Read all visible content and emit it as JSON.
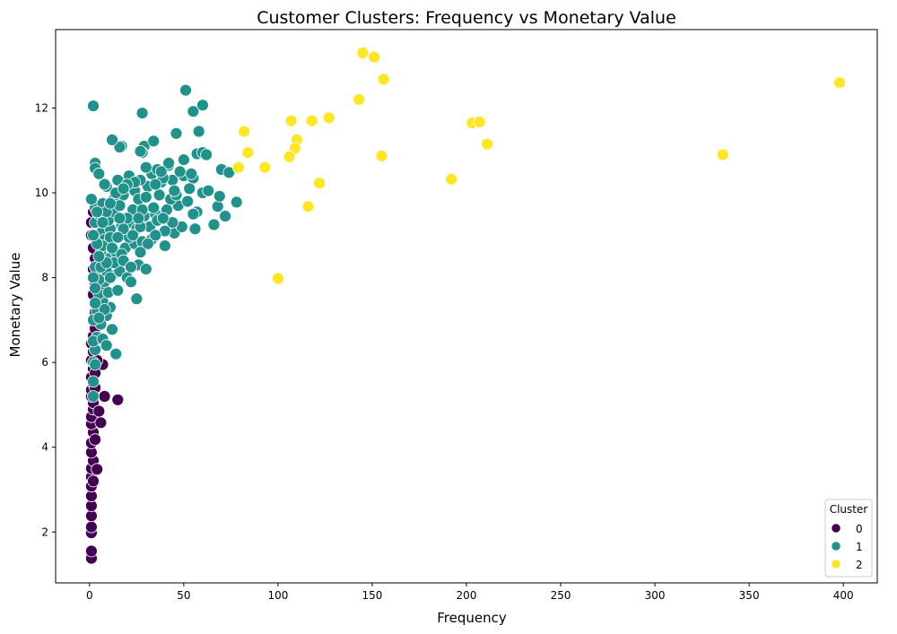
{
  "chart_data": {
    "type": "scatter",
    "title": "Customer Clusters: Frequency vs Monetary Value",
    "xlabel": "Frequency",
    "ylabel": "Monetary Value",
    "xlim": [
      -18,
      418
    ],
    "ylim": [
      0.8,
      13.85
    ],
    "xticks": [
      0,
      50,
      100,
      150,
      200,
      250,
      300,
      350,
      400
    ],
    "yticks": [
      2,
      4,
      6,
      8,
      10,
      12
    ],
    "grid": false,
    "legend": {
      "title": "Cluster",
      "placement": "bottom-right"
    },
    "series": [
      {
        "name": "0",
        "color": "#440154",
        "points": [
          [
            1,
            1.38
          ],
          [
            1,
            1.55
          ],
          [
            1,
            1.98
          ],
          [
            1,
            2.12
          ],
          [
            1,
            2.38
          ],
          [
            1,
            2.62
          ],
          [
            1,
            2.85
          ],
          [
            1,
            3.08
          ],
          [
            1,
            3.3
          ],
          [
            1,
            3.5
          ],
          [
            2,
            3.68
          ],
          [
            1,
            3.88
          ],
          [
            1,
            4.1
          ],
          [
            2,
            4.35
          ],
          [
            1,
            4.55
          ],
          [
            1,
            4.72
          ],
          [
            2,
            4.9
          ],
          [
            2,
            5.05
          ],
          [
            1,
            5.2
          ],
          [
            1,
            5.35
          ],
          [
            2,
            5.5
          ],
          [
            1,
            5.65
          ],
          [
            2,
            5.85
          ],
          [
            1,
            6.05
          ],
          [
            2,
            6.25
          ],
          [
            1,
            6.45
          ],
          [
            2,
            6.62
          ],
          [
            3,
            6.8
          ],
          [
            2,
            7.0
          ],
          [
            3,
            7.18
          ],
          [
            4,
            7.35
          ],
          [
            5,
            7.55
          ],
          [
            6,
            7.7
          ],
          [
            3,
            7.85
          ],
          [
            4,
            8.05
          ],
          [
            2,
            8.2
          ],
          [
            3,
            8.45
          ],
          [
            2,
            8.7
          ],
          [
            1,
            9.0
          ],
          [
            1,
            9.3
          ],
          [
            2,
            9.55
          ],
          [
            4,
            9.35
          ],
          [
            4,
            3.48
          ],
          [
            6,
            4.58
          ],
          [
            8,
            5.2
          ],
          [
            15,
            5.12
          ],
          [
            3,
            4.18
          ],
          [
            5,
            4.85
          ],
          [
            7,
            5.95
          ],
          [
            2,
            3.2
          ],
          [
            3,
            5.75
          ],
          [
            4,
            6.05
          ],
          [
            2,
            7.6
          ],
          [
            3,
            5.4
          ]
        ]
      },
      {
        "name": "1",
        "color": "#21918c",
        "points": [
          [
            2,
            12.05
          ],
          [
            3,
            10.7
          ],
          [
            3,
            10.58
          ],
          [
            5,
            10.45
          ],
          [
            2,
            5.2
          ],
          [
            2,
            6.0
          ],
          [
            3,
            6.3
          ],
          [
            4,
            6.6
          ],
          [
            14,
            6.2
          ],
          [
            12,
            6.78
          ],
          [
            9,
            7.1
          ],
          [
            11,
            7.3
          ],
          [
            7,
            7.45
          ],
          [
            5,
            7.62
          ],
          [
            25,
            7.5
          ],
          [
            8,
            7.9
          ],
          [
            12,
            8.05
          ],
          [
            16,
            8.15
          ],
          [
            20,
            8.0
          ],
          [
            22,
            7.9
          ],
          [
            26,
            8.3
          ],
          [
            30,
            8.2
          ],
          [
            6,
            8.35
          ],
          [
            10,
            8.45
          ],
          [
            14,
            8.6
          ],
          [
            19,
            8.7
          ],
          [
            24,
            8.8
          ],
          [
            28,
            8.85
          ],
          [
            33,
            8.9
          ],
          [
            40,
            8.75
          ],
          [
            45,
            9.05
          ],
          [
            49,
            9.2
          ],
          [
            56,
            9.15
          ],
          [
            66,
            9.25
          ],
          [
            72,
            9.45
          ],
          [
            78,
            9.78
          ],
          [
            68,
            9.68
          ],
          [
            6,
            9.05
          ],
          [
            11,
            9.15
          ],
          [
            17,
            9.25
          ],
          [
            22,
            9.3
          ],
          [
            29,
            9.45
          ],
          [
            35,
            9.5
          ],
          [
            41,
            9.6
          ],
          [
            47,
            9.7
          ],
          [
            52,
            9.8
          ],
          [
            57,
            9.55
          ],
          [
            60,
            10.0
          ],
          [
            63,
            10.05
          ],
          [
            3,
            9.65
          ],
          [
            7,
            9.75
          ],
          [
            13,
            9.85
          ],
          [
            18,
            9.95
          ],
          [
            24,
            10.05
          ],
          [
            31,
            10.15
          ],
          [
            38,
            10.25
          ],
          [
            44,
            10.3
          ],
          [
            50,
            10.4
          ],
          [
            55,
            10.35
          ],
          [
            9,
            10.15
          ],
          [
            15,
            10.3
          ],
          [
            21,
            10.4
          ],
          [
            27,
            10.3
          ],
          [
            33,
            10.45
          ],
          [
            36,
            10.55
          ],
          [
            42,
            10.65
          ],
          [
            48,
            10.5
          ],
          [
            54,
            10.45
          ],
          [
            70,
            10.55
          ],
          [
            74,
            10.48
          ],
          [
            69,
            9.92
          ],
          [
            57,
            10.92
          ],
          [
            60,
            10.95
          ],
          [
            50,
            10.78
          ],
          [
            46,
            11.4
          ],
          [
            42,
            10.7
          ],
          [
            29,
            11.1
          ],
          [
            28,
            10.95
          ],
          [
            34,
            11.22
          ],
          [
            27,
            10.98
          ],
          [
            17,
            11.1
          ],
          [
            16,
            11.08
          ],
          [
            12,
            11.25
          ],
          [
            28,
            11.88
          ],
          [
            51,
            12.42
          ],
          [
            55,
            11.92
          ],
          [
            60,
            12.07
          ],
          [
            58,
            11.45
          ],
          [
            4,
            8.1
          ],
          [
            6,
            8.6
          ],
          [
            8,
            8.9
          ],
          [
            10,
            9.35
          ],
          [
            13,
            9.55
          ],
          [
            16,
            9.7
          ],
          [
            19,
            9.05
          ],
          [
            23,
            9.6
          ],
          [
            26,
            9.85
          ],
          [
            30,
            9.9
          ],
          [
            34,
            9.65
          ],
          [
            37,
            9.95
          ],
          [
            39,
            10.35
          ],
          [
            43,
            9.85
          ],
          [
            46,
            9.95
          ],
          [
            53,
            10.1
          ],
          [
            5,
            7.95
          ],
          [
            7,
            8.75
          ],
          [
            9,
            8.15
          ],
          [
            11,
            8.95
          ],
          [
            13,
            8.35
          ],
          [
            17,
            8.55
          ],
          [
            21,
            8.95
          ],
          [
            25,
            9.15
          ],
          [
            32,
            9.2
          ],
          [
            36,
            9.35
          ],
          [
            40,
            9.1
          ],
          [
            44,
            9.3
          ],
          [
            3,
            9.3
          ],
          [
            3,
            8.25
          ],
          [
            4,
            7.2
          ],
          [
            6,
            6.9
          ],
          [
            8,
            7.25
          ],
          [
            10,
            7.65
          ],
          [
            15,
            7.7
          ],
          [
            18,
            8.4
          ],
          [
            20,
            9.4
          ],
          [
            14,
            10.0
          ],
          [
            8,
            10.2
          ],
          [
            5,
            9.5
          ],
          [
            4,
            8.8
          ],
          [
            2,
            9.0
          ],
          [
            2,
            8.0
          ],
          [
            3,
            7.75
          ],
          [
            2,
            7.0
          ],
          [
            2,
            6.5
          ],
          [
            1,
            9.85
          ],
          [
            24,
            10.25
          ],
          [
            30,
            10.6
          ],
          [
            38,
            10.5
          ],
          [
            55,
            9.5
          ],
          [
            62,
            10.9
          ],
          [
            45,
            10.05
          ],
          [
            9,
            9.55
          ],
          [
            12,
            8.7
          ],
          [
            18,
            9.15
          ],
          [
            22,
            8.25
          ],
          [
            27,
            8.6
          ],
          [
            31,
            8.8
          ],
          [
            35,
            9.0
          ],
          [
            39,
            9.4
          ],
          [
            28,
            9.6
          ],
          [
            35,
            10.2
          ],
          [
            20,
            10.2
          ],
          [
            16,
            9.4
          ],
          [
            6,
            8.25
          ],
          [
            11,
            8.0
          ],
          [
            7,
            9.3
          ],
          [
            9,
            8.35
          ],
          [
            11,
            9.75
          ],
          [
            15,
            8.95
          ],
          [
            18,
            10.1
          ],
          [
            23,
            9.0
          ],
          [
            27,
            9.2
          ],
          [
            4,
            9.55
          ],
          [
            5,
            8.5
          ],
          [
            3,
            7.4
          ],
          [
            5,
            7.05
          ],
          [
            7,
            6.55
          ],
          [
            9,
            6.4
          ],
          [
            2,
            5.55
          ],
          [
            3,
            5.95
          ],
          [
            26,
            9.4
          ]
        ]
      },
      {
        "name": "2",
        "color": "#fde725",
        "points": [
          [
            145,
            13.3
          ],
          [
            151,
            13.2
          ],
          [
            156,
            12.68
          ],
          [
            143,
            12.2
          ],
          [
            398,
            12.6
          ],
          [
            127,
            11.77
          ],
          [
            118,
            11.7
          ],
          [
            107,
            11.7
          ],
          [
            203,
            11.65
          ],
          [
            207,
            11.67
          ],
          [
            82,
            11.45
          ],
          [
            110,
            11.25
          ],
          [
            211,
            11.15
          ],
          [
            84,
            10.95
          ],
          [
            109,
            11.05
          ],
          [
            106,
            10.85
          ],
          [
            155,
            10.87
          ],
          [
            336,
            10.9
          ],
          [
            79,
            10.6
          ],
          [
            93,
            10.6
          ],
          [
            192,
            10.32
          ],
          [
            122,
            10.23
          ],
          [
            116,
            9.68
          ],
          [
            100,
            7.98
          ]
        ]
      }
    ]
  }
}
